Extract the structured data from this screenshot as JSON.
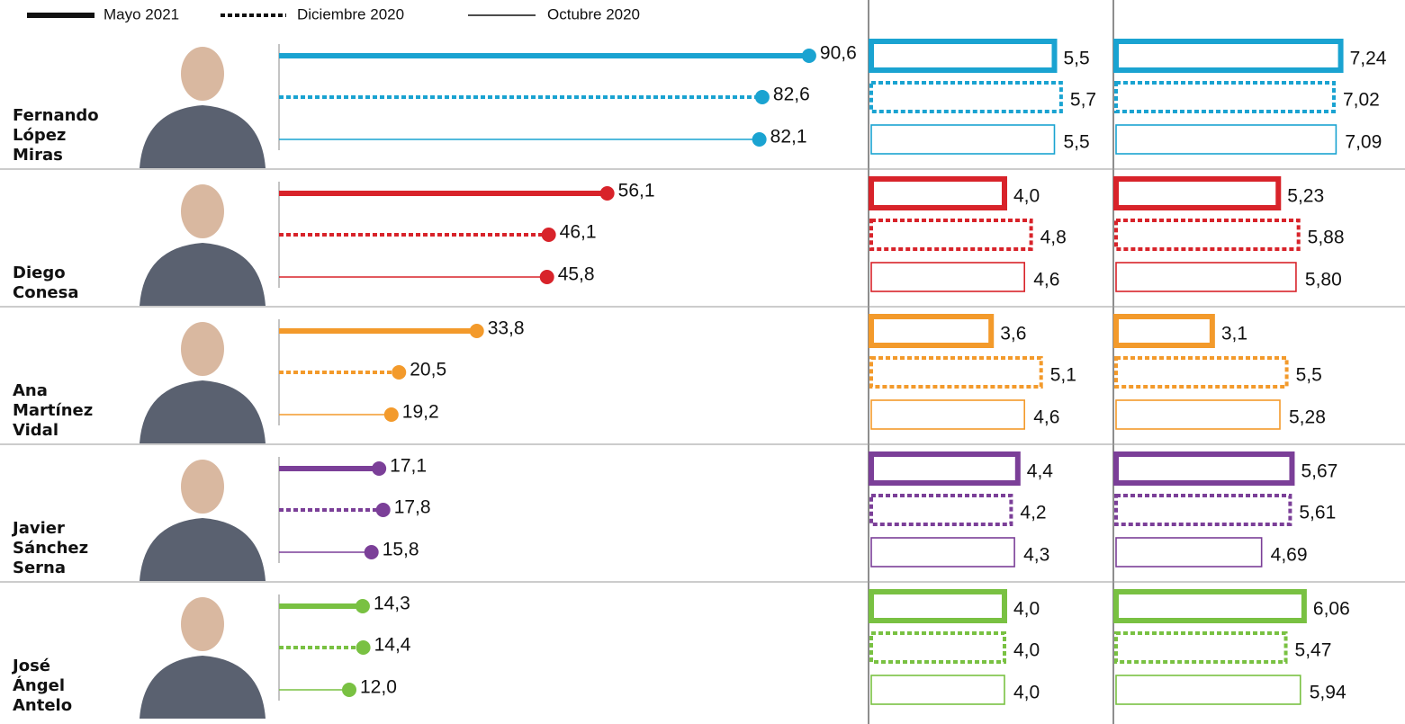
{
  "chart_data": {
    "type": "lollipop-bars",
    "series": [
      {
        "name": "Mayo 2021",
        "style": "thick"
      },
      {
        "name": "Diciembre 2020",
        "style": "dotted"
      },
      {
        "name": "Octubre 2020",
        "style": "thin"
      }
    ],
    "panels": [
      {
        "type": "lollipop",
        "xlim": [
          0,
          100
        ]
      },
      {
        "type": "bar",
        "xlim": [
          0,
          7
        ]
      },
      {
        "type": "bar",
        "xlim": [
          0,
          8.5
        ]
      }
    ],
    "people": [
      {
        "name": [
          "Fernando",
          "López",
          "Miras"
        ],
        "color": "#1aa3d1",
        "values": [
          [
            90.6,
            82.6,
            82.1
          ],
          [
            5.5,
            5.7,
            5.5
          ],
          [
            7.24,
            7.02,
            7.09
          ]
        ],
        "value_labels": [
          [
            "90,6",
            "82,6",
            "82,1"
          ],
          [
            "5,5",
            "5,7",
            "5,5"
          ],
          [
            "7,24",
            "7,02",
            "7,09"
          ]
        ]
      },
      {
        "name": [
          "Diego",
          "Conesa"
        ],
        "color": "#d8232a",
        "values": [
          [
            56.1,
            46.1,
            45.8
          ],
          [
            4.0,
            4.8,
            4.6
          ],
          [
            5.23,
            5.88,
            5.8
          ]
        ],
        "value_labels": [
          [
            "56,1",
            "46,1",
            "45,8"
          ],
          [
            "4,0",
            "4,8",
            "4,6"
          ],
          [
            "5,23",
            "5,88",
            "5,80"
          ]
        ]
      },
      {
        "name": [
          "Ana",
          "Martínez",
          "Vidal"
        ],
        "color": "#f39a2b",
        "values": [
          [
            33.8,
            20.5,
            19.2
          ],
          [
            3.6,
            5.1,
            4.6
          ],
          [
            3.1,
            5.5,
            5.28
          ]
        ],
        "value_labels": [
          [
            "33,8",
            "20,5",
            "19,2"
          ],
          [
            "3,6",
            "5,1",
            "4,6"
          ],
          [
            "3,1",
            "5,5",
            "5,28"
          ]
        ]
      },
      {
        "name": [
          "Javier",
          "Sánchez",
          "Serna"
        ],
        "color": "#7b3f98",
        "values": [
          [
            17.1,
            17.8,
            15.8
          ],
          [
            4.4,
            4.2,
            4.3
          ],
          [
            5.67,
            5.61,
            4.69
          ]
        ],
        "value_labels": [
          [
            "17,1",
            "17,8",
            "15,8"
          ],
          [
            "4,4",
            "4,2",
            "4,3"
          ],
          [
            "5,67",
            "5,61",
            "4,69"
          ]
        ]
      },
      {
        "name": [
          "José",
          "Ángel",
          "Antelo"
        ],
        "color": "#79c142",
        "values": [
          [
            14.3,
            14.4,
            12.0
          ],
          [
            4.0,
            4.0,
            4.0
          ],
          [
            6.06,
            5.47,
            5.94
          ]
        ],
        "value_labels": [
          [
            "14,3",
            "14,4",
            "12,0"
          ],
          [
            "4,0",
            "4,0",
            "4,0"
          ],
          [
            "6,06",
            "5,47",
            "5,94"
          ]
        ]
      }
    ]
  }
}
